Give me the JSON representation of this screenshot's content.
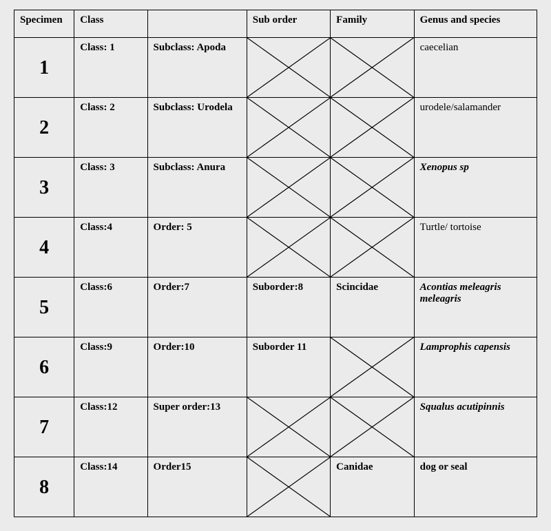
{
  "background_color": "#ebebeb",
  "border_color": "#000000",
  "font_family": "Times New Roman",
  "headers": {
    "specimen": "Specimen",
    "class": "Class",
    "subclass": "",
    "suborder": "Sub order",
    "family": "Family",
    "genus": "Genus and species"
  },
  "rows": [
    {
      "num": "1",
      "class_text": "Class: 1",
      "sub_text": "Subclass: Apoda",
      "suborder": null,
      "family": null,
      "genus": "caecelian",
      "genus_style": "plain"
    },
    {
      "num": "2",
      "class_text": "Class: 2",
      "sub_text": "Subclass: Urodela",
      "suborder": null,
      "family": null,
      "genus": "urodele/salamander",
      "genus_style": "plain"
    },
    {
      "num": "3",
      "class_text": "Class: 3",
      "sub_text": "Subclass: Anura",
      "suborder": null,
      "family": null,
      "genus": "Xenopus sp",
      "genus_style": "bolditalic"
    },
    {
      "num": "4",
      "class_text": "Class:4",
      "sub_text": "Order: 5",
      "suborder": null,
      "family": null,
      "genus": "Turtle/ tortoise",
      "genus_style": "plain"
    },
    {
      "num": "5",
      "class_text": "Class:6",
      "sub_text": "Order:7",
      "suborder": "Suborder:8",
      "family": "Scincidae",
      "genus": "Acontias meleagris meleagris",
      "genus_style": "bolditalic"
    },
    {
      "num": "6",
      "class_text": "Class:9",
      "sub_text": "Order:10",
      "suborder": "Suborder  11",
      "family": null,
      "genus": "Lamprophis capensis",
      "genus_style": "bolditalic"
    },
    {
      "num": "7",
      "class_text": "Class:12",
      "sub_text": "Super order:13",
      "suborder": null,
      "family": null,
      "genus": "Squalus acutipinnis",
      "genus_style": "bolditalic"
    },
    {
      "num": "8",
      "class_text": "Class:14",
      "sub_text": "Order15",
      "suborder": null,
      "family": "Canidae",
      "genus": "dog or seal",
      "genus_style": "bold"
    }
  ]
}
